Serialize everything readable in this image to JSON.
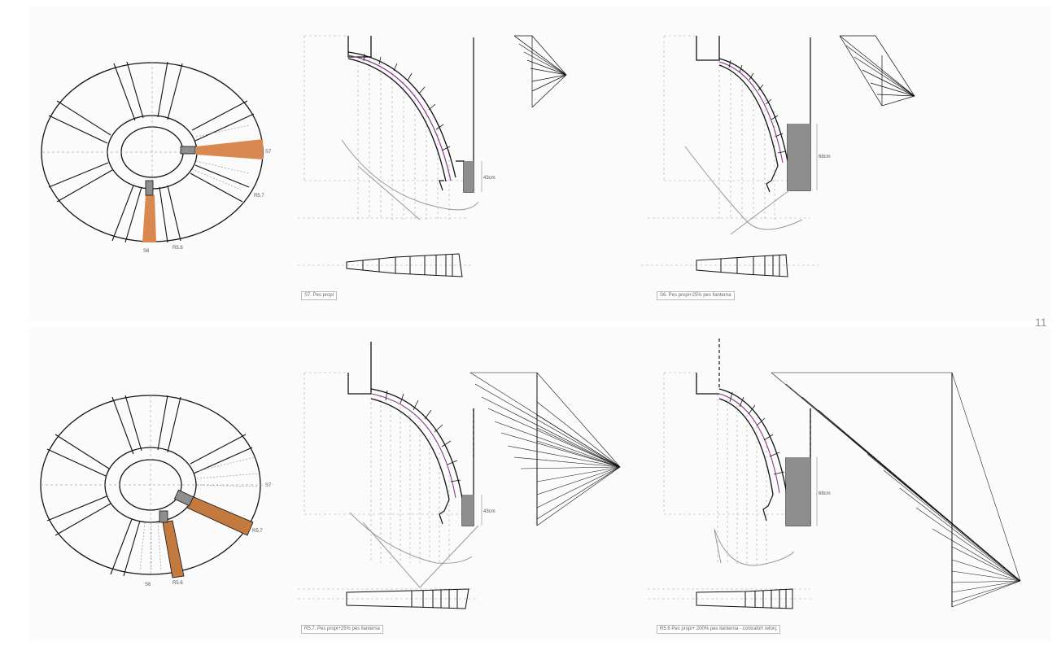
{
  "page_number": "11",
  "colors": {
    "highlight": "#d9894f",
    "block": "#8e8e8e",
    "thrust_line": "#8a3b8a",
    "line": "#111111",
    "dashed": "#9a9a9a"
  },
  "top_row": {
    "plan_labels": {
      "s7": "S7",
      "r57": "R5.7",
      "s6": "S6",
      "r56": "R5.6"
    },
    "captions": [
      "S7. Pes propi",
      "S6. Pes propi+25% pes llanterna"
    ]
  },
  "bottom_row": {
    "plan_labels": {
      "s7": "S7",
      "r57": "R5.7",
      "s6": "S6",
      "r56": "R5.6"
    },
    "captions": [
      "R5.7. Pes propi+25% pes llanterna",
      "R5.6 Pes propi+ 200% pes llanterna - contrafort reforç"
    ]
  },
  "dims": [
    "43cm",
    "68cm",
    "43cm",
    "68cm"
  ]
}
